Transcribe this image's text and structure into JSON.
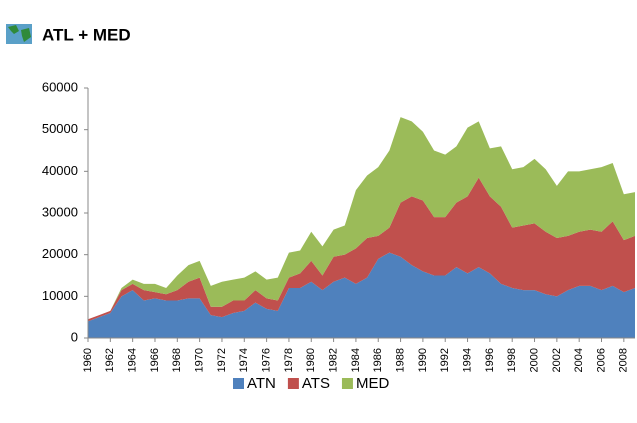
{
  "chart_data": {
    "type": "stacked_area",
    "title": "ATL + MED",
    "x": [
      1960,
      1961,
      1962,
      1963,
      1964,
      1965,
      1966,
      1967,
      1968,
      1969,
      1970,
      1971,
      1972,
      1973,
      1974,
      1975,
      1976,
      1977,
      1978,
      1979,
      1980,
      1981,
      1982,
      1983,
      1984,
      1985,
      1986,
      1987,
      1988,
      1989,
      1990,
      1991,
      1992,
      1993,
      1994,
      1995,
      1996,
      1997,
      1998,
      1999,
      2000,
      2001,
      2002,
      2003,
      2004,
      2005,
      2006,
      2007,
      2008,
      2009
    ],
    "xlim": [
      1960,
      2009
    ],
    "xticks": [
      1960,
      1962,
      1964,
      1966,
      1968,
      1970,
      1972,
      1974,
      1976,
      1978,
      1980,
      1982,
      1984,
      1986,
      1988,
      1990,
      1992,
      1994,
      1996,
      1998,
      2000,
      2002,
      2004,
      2006,
      2008
    ],
    "ylim": [
      0,
      60000
    ],
    "yticks": [
      0,
      10000,
      20000,
      30000,
      40000,
      50000,
      60000
    ],
    "legend": "bottom",
    "series": [
      {
        "name": "ATN",
        "color": "#4f81bd",
        "values": [
          4000,
          5000,
          6000,
          10000,
          11500,
          9000,
          9500,
          9000,
          9000,
          9500,
          9500,
          5500,
          5000,
          6000,
          6500,
          8500,
          7000,
          6500,
          12000,
          12000,
          13500,
          11500,
          13500,
          14500,
          13000,
          14500,
          19000,
          20500,
          19500,
          17500,
          16000,
          15000,
          15000,
          17000,
          15500,
          17000,
          15500,
          13000,
          12000,
          11500,
          11500,
          10500,
          10000,
          11500,
          12500,
          12500,
          11500,
          12500,
          11000,
          12000
        ]
      },
      {
        "name": "ATS",
        "color": "#c0504d",
        "values": [
          500,
          500,
          500,
          1500,
          1500,
          2500,
          1500,
          1500,
          2500,
          4000,
          5000,
          2000,
          2500,
          3000,
          2500,
          3000,
          2500,
          2500,
          2500,
          3500,
          5000,
          3500,
          6000,
          5500,
          8500,
          9500,
          5500,
          6000,
          13000,
          16500,
          17000,
          14000,
          14000,
          15500,
          18500,
          21500,
          18500,
          18500,
          14500,
          15500,
          16000,
          15000,
          14000,
          13000,
          13000,
          13500,
          14000,
          15500,
          12500,
          12500
        ]
      },
      {
        "name": "MED",
        "color": "#9bbb59",
        "values": [
          0,
          0,
          0,
          500,
          1000,
          1500,
          2000,
          1500,
          3500,
          4000,
          4000,
          5000,
          6000,
          5000,
          5500,
          4500,
          4500,
          5500,
          6000,
          5500,
          7000,
          7000,
          6500,
          7000,
          14000,
          15000,
          16500,
          18500,
          20500,
          18000,
          16500,
          16000,
          15000,
          13500,
          16500,
          13500,
          11500,
          14500,
          14000,
          14000,
          15500,
          15000,
          12500,
          15500,
          14500,
          14500,
          15500,
          14000,
          11000,
          10500
        ]
      }
    ]
  }
}
